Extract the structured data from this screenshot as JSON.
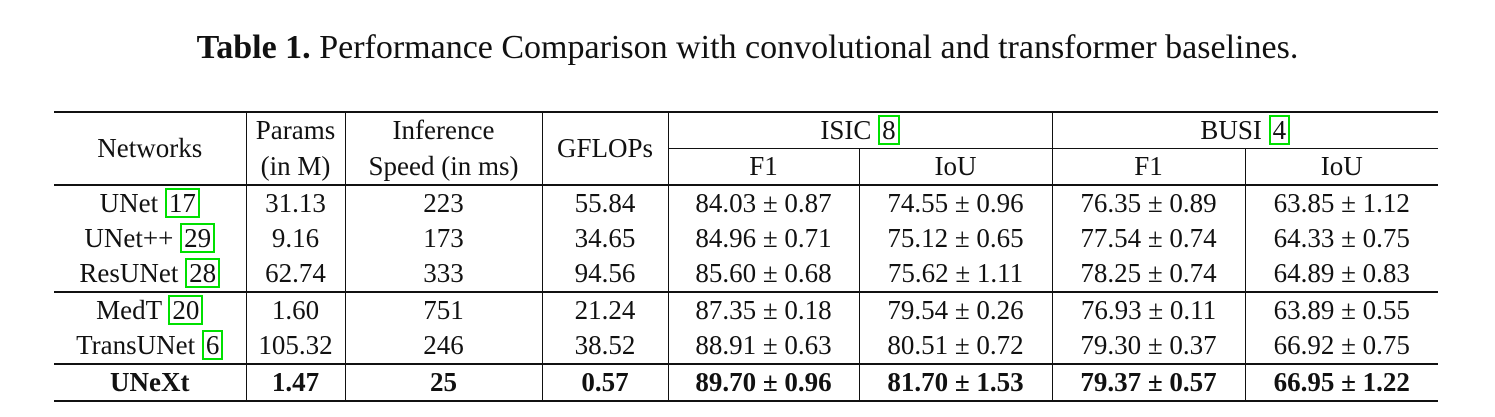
{
  "caption": {
    "label": "Table 1.",
    "text": "Performance Comparison with convolutional and transformer baselines."
  },
  "table": {
    "headers": {
      "networks": "Networks",
      "params_line1": "Params",
      "params_line2": "(in M)",
      "speed_line1": "Inference",
      "speed_line2": "Speed (in ms)",
      "gflops": "GFLOPs",
      "isic": "ISIC",
      "isic_cite": "8",
      "busi": "BUSI",
      "busi_cite": "4",
      "f1": "F1",
      "iou": "IoU"
    },
    "rows": [
      {
        "name": "UNet",
        "cite": "17",
        "params": "31.13",
        "speed": "223",
        "gflops": "55.84",
        "isic_f1": "84.03 ± 0.87",
        "isic_iou": "74.55 ± 0.96",
        "busi_f1": "76.35 ± 0.89",
        "busi_iou": "63.85 ± 1.12"
      },
      {
        "name": "UNet++",
        "cite": "29",
        "params": "9.16",
        "speed": "173",
        "gflops": "34.65",
        "isic_f1": "84.96 ± 0.71",
        "isic_iou": "75.12 ± 0.65",
        "busi_f1": "77.54 ± 0.74",
        "busi_iou": "64.33 ± 0.75"
      },
      {
        "name": "ResUNet",
        "cite": "28",
        "params": "62.74",
        "speed": "333",
        "gflops": "94.56",
        "isic_f1": "85.60 ± 0.68",
        "isic_iou": "75.62 ± 1.11",
        "busi_f1": "78.25 ± 0.74",
        "busi_iou": "64.89 ± 0.83"
      },
      {
        "name": "MedT",
        "cite": "20",
        "params": "1.60",
        "speed": "751",
        "gflops": "21.24",
        "isic_f1": "87.35 ± 0.18",
        "isic_iou": "79.54 ± 0.26",
        "busi_f1": "76.93 ± 0.11",
        "busi_iou": "63.89 ± 0.55"
      },
      {
        "name": "TransUNet",
        "cite": "6",
        "params": "105.32",
        "speed": "246",
        "gflops": "38.52",
        "isic_f1": "88.91 ± 0.63",
        "isic_iou": "80.51 ± 0.72",
        "busi_f1": "79.30 ± 0.37",
        "busi_iou": "66.92 ± 0.75"
      },
      {
        "name": "UNeXt",
        "cite": "",
        "params": "1.47",
        "speed": "25",
        "gflops": "0.57",
        "isic_f1": "89.70 ± 0.96",
        "isic_iou": "81.70 ± 1.53",
        "busi_f1": "79.37 ± 0.57",
        "busi_iou": "66.95 ± 1.22"
      }
    ]
  }
}
